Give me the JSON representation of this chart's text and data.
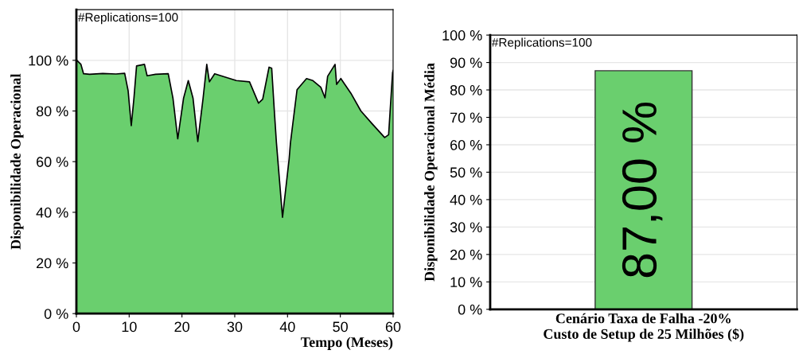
{
  "chart_data": [
    {
      "type": "area",
      "xlabel": "Tempo (Meses)",
      "ylabel": "Disponibilidade Operacional",
      "annotations": [
        "#Replications=100"
      ],
      "x": [
        0,
        0.1,
        0.86,
        1.36,
        2.5,
        5,
        7.5,
        9.15,
        9.8,
        10.4,
        10.9,
        11.4,
        12.9,
        13.4,
        15,
        17.4,
        18.3,
        19.2,
        20.3,
        21.2,
        22.1,
        23.0,
        24.0,
        24.7,
        25.2,
        26.2,
        28,
        30.3,
        32.8,
        34.5,
        35.3,
        36.5,
        37.0,
        37.5,
        37.9,
        39.05,
        40.3,
        40.55,
        41.8,
        43.6,
        44.8,
        46.3,
        47.1,
        47.6,
        49.0,
        49.3,
        50.1,
        52,
        53.9,
        56,
        58.4,
        59.15,
        59.9,
        60
      ],
      "series": [
        {
          "color": "#6acf6e",
          "values": [
            99,
            100,
            98.4,
            94.7,
            94.5,
            94.8,
            94.6,
            94.9,
            88,
            74.2,
            85,
            97.8,
            98.4,
            93.9,
            94.5,
            94.7,
            85,
            69,
            85,
            92,
            85,
            67.9,
            85,
            98.4,
            91.5,
            94.7,
            93.5,
            92,
            91.5,
            83.1,
            84.7,
            97.3,
            96.9,
            80,
            67.4,
            38,
            61,
            67.4,
            88.4,
            92.8,
            92,
            89.4,
            85.2,
            93.7,
            98.4,
            90.5,
            92.8,
            87,
            80,
            75,
            69.5,
            70.6,
            95.2,
            96
          ]
        }
      ],
      "xlim": [
        0,
        60
      ],
      "xticks": [
        0,
        10,
        20,
        30,
        40,
        50,
        60
      ],
      "ylim": [
        0,
        120
      ],
      "yticks": [
        {
          "value": 0,
          "label": "0 %"
        },
        {
          "value": 20,
          "label": "20 %"
        },
        {
          "value": 40,
          "label": "40 %"
        },
        {
          "value": 60,
          "label": "60 %"
        },
        {
          "value": 80,
          "label": "80 %"
        },
        {
          "value": 100,
          "label": "100 %"
        }
      ],
      "grid": true
    },
    {
      "type": "bar",
      "ylabel": "Disponibilidade Operacional Média",
      "annotations": [
        "#Replications=100"
      ],
      "categories": [
        "Cenário Taxa de Falha -20%\nCusto de Setup de 25 Milhões ($)"
      ],
      "series": [
        {
          "color": "#6acf6e",
          "values": [
            87
          ]
        }
      ],
      "value_labels": [
        "87,00 %"
      ],
      "ylim": [
        0,
        100
      ],
      "yticks": [
        {
          "value": 0,
          "label": "0 %"
        },
        {
          "value": 10,
          "label": "10 %"
        },
        {
          "value": 20,
          "label": "20 %"
        },
        {
          "value": 30,
          "label": "30 %"
        },
        {
          "value": 40,
          "label": "40 %"
        },
        {
          "value": 50,
          "label": "50 %"
        },
        {
          "value": 60,
          "label": "60 %"
        },
        {
          "value": 70,
          "label": "70 %"
        },
        {
          "value": 80,
          "label": "80 %"
        },
        {
          "value": 90,
          "label": "90 %"
        },
        {
          "value": 100,
          "label": "100 %"
        }
      ],
      "grid": "y"
    }
  ]
}
